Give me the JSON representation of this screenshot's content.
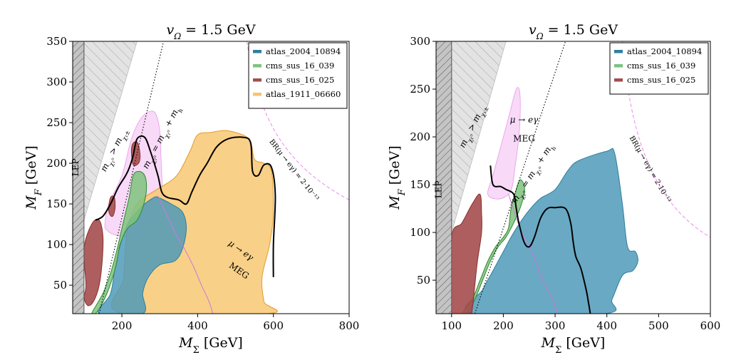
{
  "chart_data": [
    {
      "type": "area",
      "title": "v_Ω = 1.5 GeV",
      "xlabel": "M_Σ [GeV]",
      "ylabel": "M_F [GeV]",
      "xlim": [
        70,
        800
      ],
      "ylim": [
        15,
        350
      ],
      "xticks": [
        200,
        400,
        600,
        800
      ],
      "yticks": [
        50,
        100,
        150,
        200,
        250,
        300,
        350
      ],
      "legend_position": "top-right",
      "grid": false,
      "legend": [
        {
          "name": "atlas_2004_10894",
          "color": "#2e7f9e"
        },
        {
          "name": "cms_sus_16_039",
          "color": "#7fc27f"
        },
        {
          "name": "cms_sus_16_025",
          "color": "#a54c4c"
        },
        {
          "name": "atlas_1911_06660",
          "color": "#f5c56e"
        }
      ],
      "annotations": [
        {
          "text": "LEP",
          "x": 85,
          "y": 195
        },
        {
          "text": "m_χ₁⁰ > m_χ₁±",
          "x": 185,
          "y": 215
        },
        {
          "text": "m_χ₂⁰ = m_χ₁⁰ + m_h",
          "x": 310,
          "y": 230
        },
        {
          "text": "BR(μ → eγ) = 2·10⁻¹³",
          "x": 650,
          "y": 190
        },
        {
          "text": "μ → eγ",
          "x": 510,
          "y": 90
        },
        {
          "text": "MEG",
          "x": 505,
          "y": 65
        }
      ],
      "regions": {
        "lep": [
          [
            70,
            15
          ],
          [
            100,
            15
          ],
          [
            100,
            350
          ],
          [
            70,
            350
          ]
        ],
        "kinematic": [
          [
            100,
            350
          ],
          [
            240,
            350
          ],
          [
            100,
            130
          ]
        ],
        "meg_pink": [
          [
            155,
            125
          ],
          [
            165,
            150
          ],
          [
            200,
            185
          ],
          [
            225,
            230
          ],
          [
            250,
            255
          ],
          [
            275,
            264
          ],
          [
            290,
            260
          ],
          [
            300,
            240
          ],
          [
            303,
            210
          ],
          [
            306,
            170
          ],
          [
            300,
            145
          ],
          [
            285,
            130
          ],
          [
            255,
            115
          ],
          [
            215,
            110
          ],
          [
            180,
            112
          ],
          [
            160,
            118
          ]
        ],
        "meg_line": [
          [
            295,
            160
          ],
          [
            315,
            140
          ],
          [
            340,
            115
          ],
          [
            365,
            95
          ],
          [
            390,
            72
          ],
          [
            410,
            50
          ],
          [
            430,
            30
          ],
          [
            440,
            15
          ]
        ],
        "atlas_1911_06660": [
          [
            200,
            15
          ],
          [
            205,
            60
          ],
          [
            215,
            120
          ],
          [
            240,
            150
          ],
          [
            265,
            160
          ],
          [
            300,
            170
          ],
          [
            345,
            185
          ],
          [
            380,
            215
          ],
          [
            400,
            235
          ],
          [
            435,
            238
          ],
          [
            480,
            240
          ],
          [
            535,
            230
          ],
          [
            550,
            205
          ],
          [
            575,
            200
          ],
          [
            595,
            190
          ],
          [
            600,
            140
          ],
          [
            590,
            100
          ],
          [
            570,
            60
          ],
          [
            575,
            30
          ],
          [
            585,
            15
          ]
        ],
        "atlas_2004_10894": [
          [
            140,
            15
          ],
          [
            170,
            40
          ],
          [
            185,
            80
          ],
          [
            210,
            120
          ],
          [
            230,
            135
          ],
          [
            260,
            150
          ],
          [
            285,
            158
          ],
          [
            295,
            158
          ],
          [
            330,
            150
          ],
          [
            360,
            140
          ],
          [
            370,
            120
          ],
          [
            360,
            95
          ],
          [
            340,
            80
          ],
          [
            300,
            75
          ],
          [
            270,
            60
          ],
          [
            255,
            40
          ],
          [
            255,
            15
          ]
        ],
        "cms_sus_16_039": [
          [
            120,
            15
          ],
          [
            150,
            40
          ],
          [
            170,
            65
          ],
          [
            185,
            90
          ],
          [
            200,
            120
          ],
          [
            210,
            140
          ],
          [
            220,
            160
          ],
          [
            230,
            185
          ],
          [
            245,
            190
          ],
          [
            260,
            185
          ],
          [
            265,
            170
          ],
          [
            258,
            150
          ],
          [
            240,
            130
          ],
          [
            215,
            120
          ],
          [
            195,
            100
          ],
          [
            185,
            75
          ],
          [
            165,
            45
          ],
          [
            145,
            25
          ],
          [
            130,
            15
          ]
        ],
        "cms_sus_16_025_a": [
          [
            100,
            35
          ],
          [
            105,
            50
          ],
          [
            100,
            95
          ],
          [
            120,
            125
          ],
          [
            140,
            130
          ],
          [
            150,
            110
          ],
          [
            148,
            80
          ],
          [
            140,
            50
          ],
          [
            125,
            30
          ],
          [
            110,
            25
          ]
        ],
        "cms_sus_16_025_b": [
          [
            225,
            215
          ],
          [
            230,
            225
          ],
          [
            242,
            225
          ],
          [
            248,
            210
          ],
          [
            244,
            200
          ],
          [
            230,
            198
          ]
        ],
        "cms_sus_16_025_c": [
          [
            165,
            145
          ],
          [
            170,
            158
          ],
          [
            180,
            158
          ],
          [
            182,
            145
          ],
          [
            176,
            135
          ],
          [
            168,
            137
          ]
        ],
        "black_contour": [
          [
            130,
            130
          ],
          [
            150,
            135
          ],
          [
            170,
            150
          ],
          [
            190,
            170
          ],
          [
            210,
            185
          ],
          [
            220,
            195
          ],
          [
            230,
            210
          ],
          [
            240,
            230
          ],
          [
            260,
            232
          ],
          [
            275,
            215
          ],
          [
            295,
            185
          ],
          [
            305,
            165
          ],
          [
            320,
            158
          ],
          [
            350,
            155
          ],
          [
            370,
            150
          ],
          [
            385,
            165
          ],
          [
            405,
            185
          ],
          [
            425,
            200
          ],
          [
            450,
            220
          ],
          [
            480,
            230
          ],
          [
            520,
            232
          ],
          [
            540,
            225
          ],
          [
            545,
            190
          ],
          [
            560,
            185
          ],
          [
            575,
            198
          ],
          [
            595,
            195
          ],
          [
            605,
            160
          ],
          [
            600,
            100
          ],
          [
            600,
            60
          ]
        ]
      }
    },
    {
      "type": "area",
      "title": "v_Ω = 1.5 GeV",
      "xlabel": "M_Σ [GeV]",
      "ylabel": "M_F [GeV]",
      "xlim": [
        70,
        600
      ],
      "ylim": [
        15,
        300
      ],
      "xticks": [
        100,
        200,
        300,
        400,
        500,
        600
      ],
      "yticks": [
        50,
        100,
        150,
        200,
        250,
        300
      ],
      "legend_position": "top-right",
      "grid": false,
      "legend": [
        {
          "name": "atlas_2004_10894",
          "color": "#2e7f9e"
        },
        {
          "name": "cms_sus_16_039",
          "color": "#7fc27f"
        },
        {
          "name": "cms_sus_16_025",
          "color": "#a54c4c"
        }
      ],
      "annotations": [
        {
          "text": "LEP",
          "x": 80,
          "y": 145
        },
        {
          "text": "m_χ₁⁰ > m_χ₁±",
          "x": 145,
          "y": 210
        },
        {
          "text": "m_χ₂⁰ = m_χ₁⁰ + m_h",
          "x": 260,
          "y": 160
        },
        {
          "text": "BR(μ → eγ) = 2·10⁻¹³",
          "x": 480,
          "y": 165
        },
        {
          "text": "μ → eγ",
          "x": 240,
          "y": 215
        },
        {
          "text": "MEG",
          "x": 240,
          "y": 195
        }
      ],
      "regions": {
        "lep": [
          [
            70,
            15
          ],
          [
            100,
            15
          ],
          [
            100,
            300
          ],
          [
            70,
            300
          ]
        ],
        "kinematic": [
          [
            100,
            300
          ],
          [
            205,
            300
          ],
          [
            100,
            100
          ]
        ],
        "meg_pink": [
          [
            170,
            140
          ],
          [
            180,
            160
          ],
          [
            195,
            190
          ],
          [
            210,
            220
          ],
          [
            225,
            250
          ],
          [
            232,
            245
          ],
          [
            232,
            215
          ],
          [
            228,
            190
          ],
          [
            223,
            170
          ],
          [
            218,
            150
          ],
          [
            210,
            140
          ],
          [
            190,
            135
          ]
        ],
        "meg_line": [
          [
            210,
            140
          ],
          [
            225,
            115
          ],
          [
            240,
            95
          ],
          [
            255,
            80
          ],
          [
            265,
            65
          ],
          [
            280,
            45
          ],
          [
            295,
            30
          ],
          [
            305,
            15
          ]
        ],
        "atlas_2004_10894": [
          [
            140,
            15
          ],
          [
            160,
            40
          ],
          [
            180,
            60
          ],
          [
            200,
            80
          ],
          [
            220,
            100
          ],
          [
            245,
            120
          ],
          [
            270,
            135
          ],
          [
            300,
            145
          ],
          [
            325,
            165
          ],
          [
            345,
            175
          ],
          [
            400,
            185
          ],
          [
            415,
            183
          ],
          [
            430,
            130
          ],
          [
            440,
            85
          ],
          [
            455,
            80
          ],
          [
            460,
            70
          ],
          [
            450,
            60
          ],
          [
            430,
            55
          ],
          [
            410,
            30
          ],
          [
            395,
            15
          ]
        ],
        "cms_sus_16_039": [
          [
            120,
            15
          ],
          [
            140,
            30
          ],
          [
            155,
            50
          ],
          [
            170,
            70
          ],
          [
            185,
            85
          ],
          [
            200,
            95
          ],
          [
            210,
            105
          ],
          [
            215,
            125
          ],
          [
            225,
            145
          ],
          [
            232,
            155
          ],
          [
            240,
            150
          ],
          [
            240,
            140
          ],
          [
            232,
            125
          ],
          [
            220,
            110
          ],
          [
            205,
            95
          ],
          [
            190,
            85
          ],
          [
            175,
            70
          ],
          [
            160,
            50
          ],
          [
            145,
            30
          ],
          [
            130,
            15
          ]
        ],
        "cms_sus_16_025": [
          [
            100,
            15
          ],
          [
            100,
            95
          ],
          [
            120,
            110
          ],
          [
            140,
            130
          ],
          [
            155,
            140
          ],
          [
            158,
            120
          ],
          [
            158,
            100
          ],
          [
            150,
            70
          ],
          [
            145,
            45
          ],
          [
            140,
            20
          ],
          [
            135,
            15
          ]
        ],
        "black_contour": [
          [
            175,
            170
          ],
          [
            180,
            150
          ],
          [
            195,
            148
          ],
          [
            205,
            145
          ],
          [
            220,
            140
          ],
          [
            225,
            125
          ],
          [
            230,
            110
          ],
          [
            240,
            90
          ],
          [
            250,
            85
          ],
          [
            260,
            95
          ],
          [
            272,
            115
          ],
          [
            285,
            125
          ],
          [
            300,
            126
          ],
          [
            320,
            125
          ],
          [
            330,
            110
          ],
          [
            335,
            90
          ],
          [
            340,
            75
          ],
          [
            350,
            62
          ],
          [
            360,
            40
          ],
          [
            365,
            25
          ],
          [
            368,
            15
          ]
        ]
      }
    }
  ]
}
